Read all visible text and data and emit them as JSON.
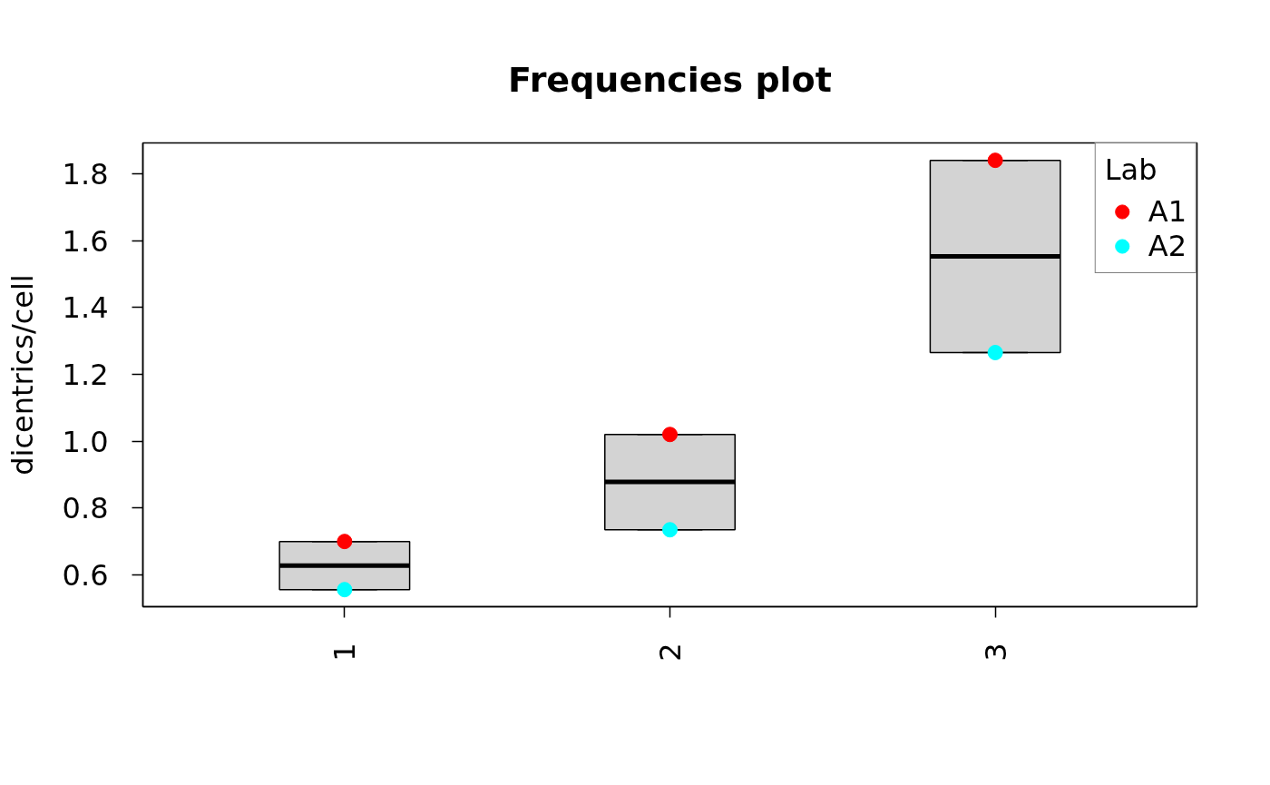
{
  "chart_data": {
    "type": "box",
    "title": "Frequencies plot",
    "ylabel": "dicentrics/cell",
    "legend_title": "Lab",
    "legend": "top right",
    "marker": "circle",
    "categories": [
      "1",
      "2",
      "3"
    ],
    "ylim": [
      0.505,
      1.892
    ],
    "yticks": [
      0.6,
      0.8,
      {
        "value": 1.0,
        "label": "1.0"
      },
      1.2,
      1.4,
      1.6,
      1.8
    ],
    "series": [
      {
        "color": "#d3d3d3",
        "boxes": [
          {
            "low": 0.556,
            "q1": 0.556,
            "median": 0.628,
            "q3": 0.7,
            "high": 0.7
          },
          {
            "low": 0.735,
            "q1": 0.735,
            "median": 0.878,
            "q3": 1.02,
            "high": 1.02
          },
          {
            "low": 1.265,
            "q1": 1.265,
            "median": 1.553,
            "q3": 1.84,
            "high": 1.84
          }
        ]
      },
      {
        "type": "scatter",
        "name": "A1",
        "color": "#ff0000",
        "x": [
          "1",
          "2",
          "3"
        ],
        "values": [
          0.7,
          1.02,
          1.84
        ]
      },
      {
        "type": "scatter",
        "name": "A2",
        "color": "#00ffff",
        "x": [
          "1",
          "2",
          "3"
        ],
        "values": [
          0.556,
          0.735,
          1.265
        ]
      }
    ]
  }
}
